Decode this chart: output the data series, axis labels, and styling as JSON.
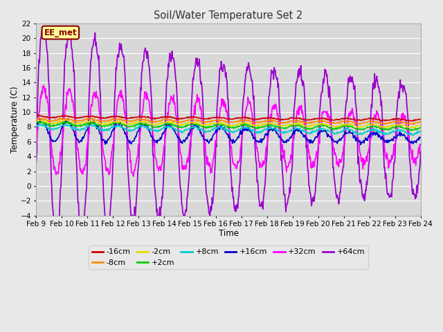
{
  "title": "Soil/Water Temperature Set 2",
  "xlabel": "Time",
  "ylabel": "Temperature (C)",
  "xlim": [
    0,
    15
  ],
  "ylim": [
    -4,
    22
  ],
  "yticks": [
    -4,
    -2,
    0,
    2,
    4,
    6,
    8,
    10,
    12,
    14,
    16,
    18,
    20,
    22
  ],
  "xtick_labels": [
    "Feb 9",
    "Feb 10",
    "Feb 11",
    "Feb 12",
    "Feb 13",
    "Feb 14",
    "Feb 15",
    "Feb 16",
    "Feb 17",
    "Feb 18",
    "Feb 19",
    "Feb 20",
    "Feb 21",
    "Feb 22",
    "Feb 23",
    "Feb 24"
  ],
  "bg_color": "#e8e8e8",
  "plot_bg": "#d8d8d8",
  "grid_color": "#ffffff",
  "annotation_text": "EE_met",
  "annotation_bg": "#ffff99",
  "annotation_border": "#8b0000",
  "colors": {
    "-16cm": "#cc0000",
    "-8cm": "#ff8800",
    "-2cm": "#dddd00",
    "+2cm": "#00cc00",
    "+8cm": "#00cccc",
    "+16cm": "#0000cc",
    "+32cm": "#ff00ff",
    "+64cm": "#9900cc"
  },
  "legend_order": [
    "-16cm",
    "-8cm",
    "-2cm",
    "+2cm",
    "+8cm",
    "+16cm",
    "+32cm",
    "+64cm"
  ],
  "figsize": [
    6.4,
    4.8
  ],
  "dpi": 100
}
